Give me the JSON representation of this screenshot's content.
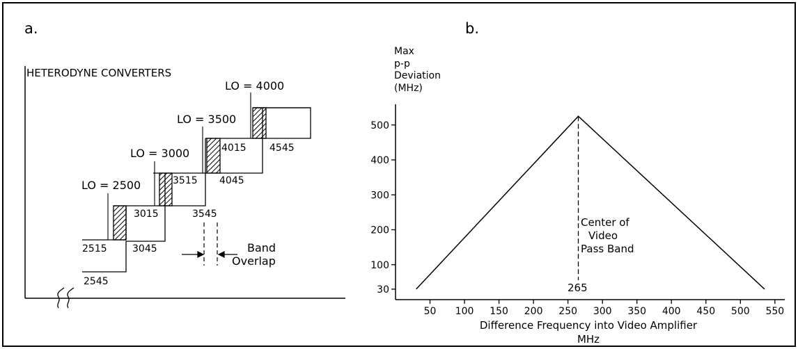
{
  "panel_a": {
    "label": "a.",
    "title": "HETERODYNE CONVERTERS",
    "lo_labels": [
      "LO = 2500",
      "LO = 3000",
      "LO = 3500",
      "LO = 4000"
    ],
    "freq_labels": [
      "2515",
      "3045",
      "2545",
      "3015",
      "3545",
      "3515",
      "4045",
      "4015",
      "4545"
    ],
    "band_label_1": "Band",
    "band_label_2": "Overlap"
  },
  "panel_b": {
    "label": "b.",
    "ylabel_lines": [
      "Max",
      "p-p",
      "Deviation",
      "(MHz)"
    ],
    "xlabel_line1": "Difference Frequency into Video Amplifier",
    "xlabel_line2": "MHz",
    "center_label_lines": [
      "Center of",
      "Video",
      "Pass Band"
    ],
    "center_value": "265",
    "y_ticks": [
      "30",
      "100",
      "200",
      "300",
      "400",
      "500"
    ],
    "x_ticks": [
      "50",
      "100",
      "150",
      "200",
      "250",
      "300",
      "350",
      "400",
      "450",
      "500",
      "550"
    ]
  },
  "chart_data": {
    "type": "line",
    "x": [
      30,
      265,
      535
    ],
    "y": [
      30,
      525,
      30
    ],
    "xlim": [
      0,
      560
    ],
    "ylim": [
      0,
      540
    ],
    "x_ticks": [
      50,
      100,
      150,
      200,
      250,
      300,
      350,
      400,
      450,
      500,
      550
    ],
    "y_ticks": [
      30,
      100,
      200,
      300,
      400,
      500
    ],
    "center_x": 265
  }
}
